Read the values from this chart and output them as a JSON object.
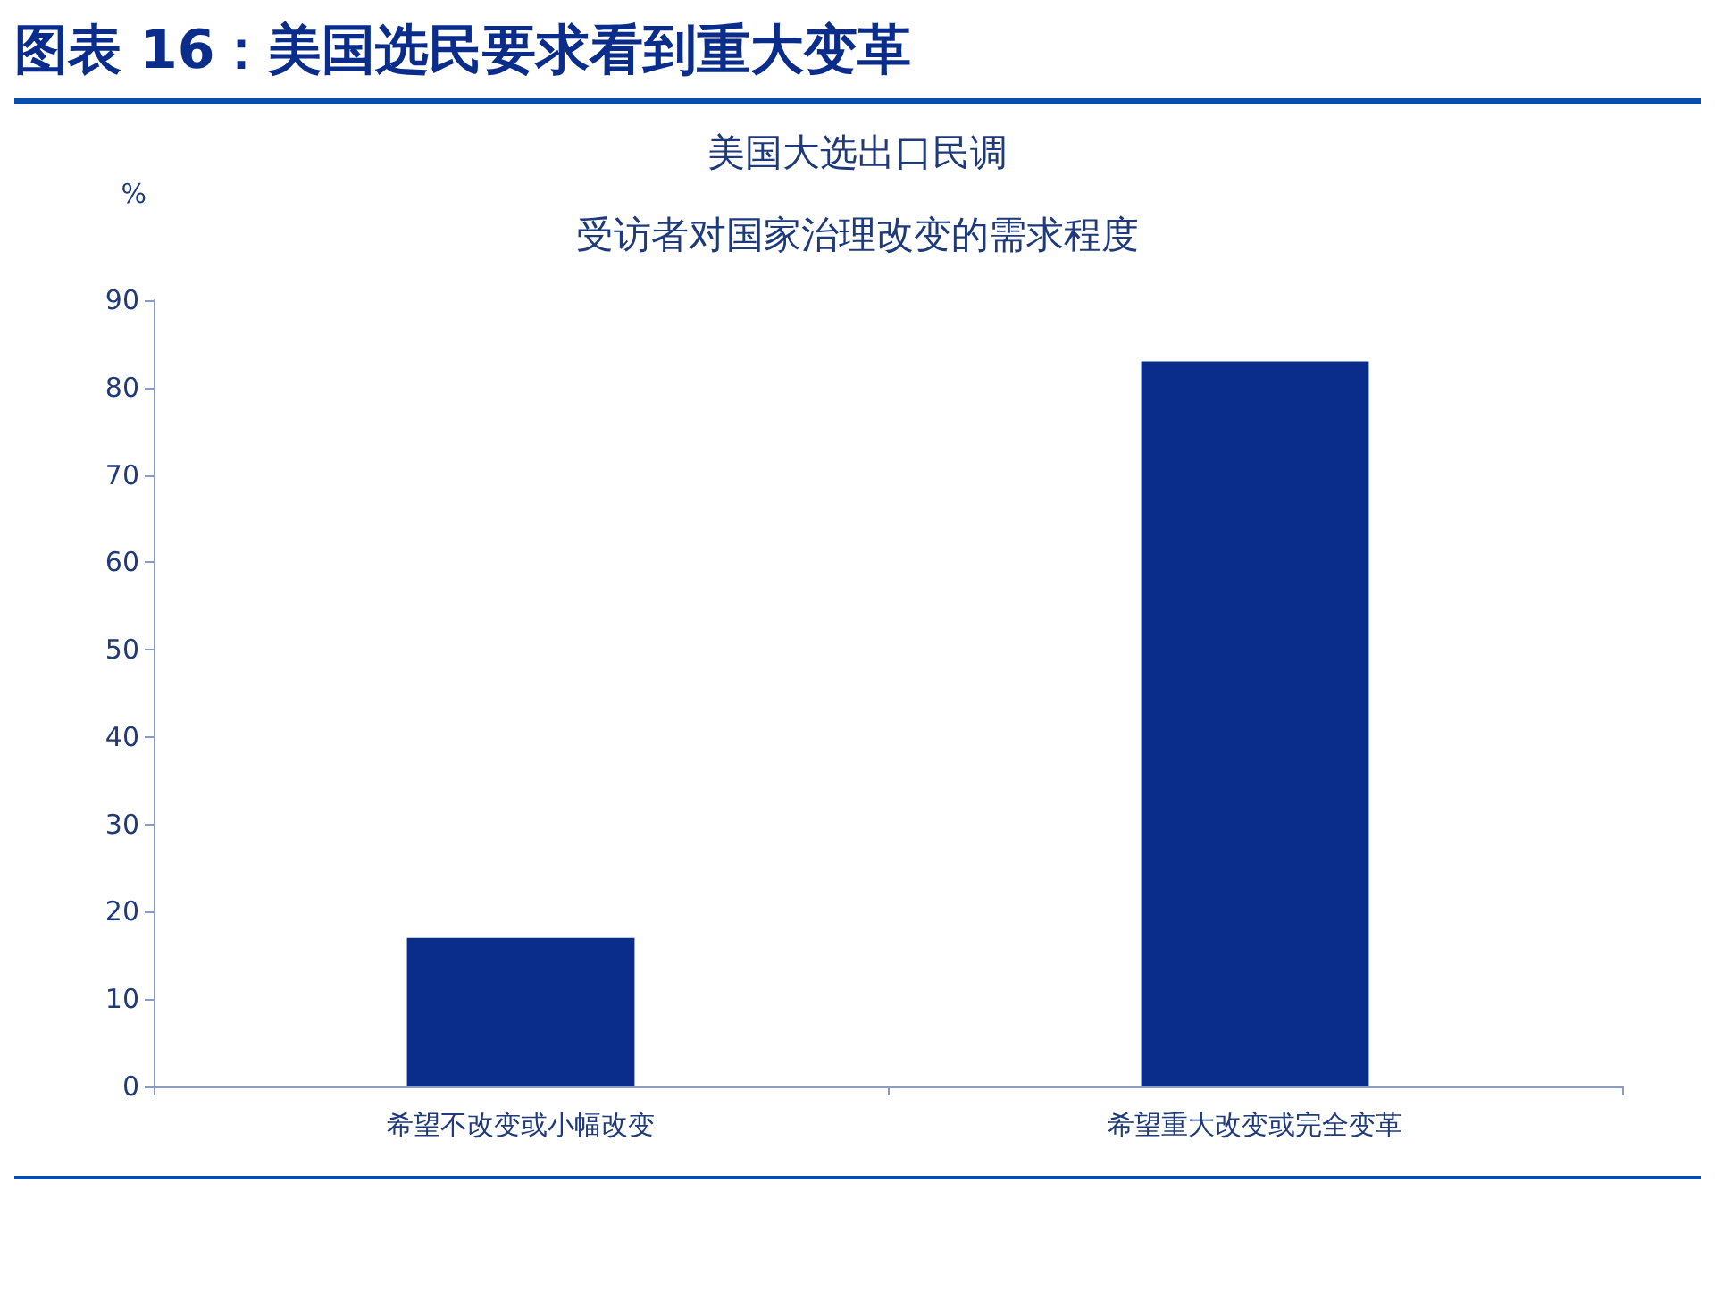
{
  "chart_data": {
    "type": "bar",
    "title": "图表 16：美国选民要求看到重大变革",
    "subtitle": [
      "美国大选出口民调",
      "受访者对国家治理改变的需求程度"
    ],
    "ylabel": "%",
    "categories": [
      "希望不改变或小幅改变",
      "希望重大改变或完全变革"
    ],
    "values": [
      17,
      83
    ],
    "color": "#0a2d8c",
    "ylim": [
      0,
      90
    ],
    "yticks": [
      0,
      10,
      20,
      30,
      40,
      50,
      60,
      70,
      80,
      90
    ],
    "grid": false
  }
}
